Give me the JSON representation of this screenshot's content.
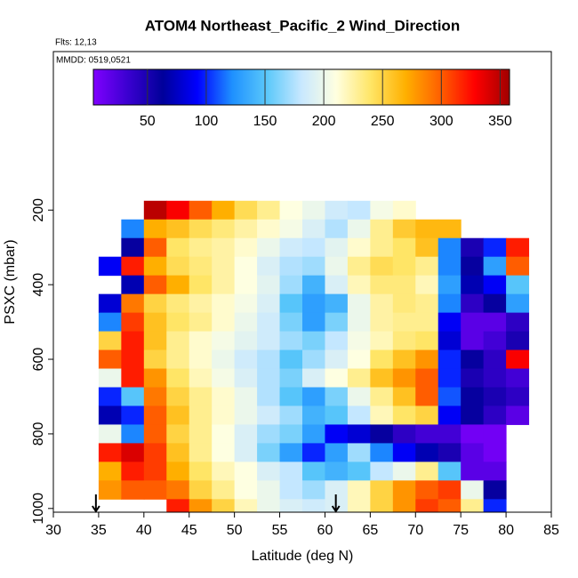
{
  "chart_data": {
    "type": "heatmap",
    "title": "ATOM4 Northeast_Pacific_2 Wind_Direction",
    "annotations": [
      "Flts: 12,13",
      "MMDD: 0519,0521"
    ],
    "x_label": "Latitude (deg N)",
    "y_label": "PSXC (mbar)",
    "xlim": [
      30,
      85
    ],
    "xticks": [
      30,
      35,
      40,
      45,
      50,
      55,
      60,
      65,
      70,
      75,
      80,
      85
    ],
    "ylim": [
      1010,
      -225
    ],
    "yticks": [
      200,
      400,
      600,
      800,
      1000
    ],
    "x": [
      35,
      37.5,
      40,
      42.5,
      45,
      47.5,
      50,
      52.5,
      55,
      57.5,
      60,
      62.5,
      65,
      67.5,
      70,
      72.5,
      75,
      77.5,
      80,
      82.5
    ],
    "y": [
      200,
      250,
      300,
      350,
      400,
      450,
      500,
      550,
      600,
      650,
      700,
      750,
      800,
      850,
      900,
      950,
      1000
    ],
    "z": [
      [
        null,
        null,
        350,
        330,
        300,
        270,
        245,
        230,
        210,
        200,
        185,
        180,
        205,
        215,
        null,
        null,
        null,
        null,
        null
      ],
      [
        null,
        120,
        270,
        260,
        245,
        235,
        225,
        215,
        205,
        190,
        175,
        200,
        230,
        255,
        265,
        265,
        null,
        null,
        null
      ],
      [
        null,
        60,
        300,
        240,
        230,
        225,
        215,
        200,
        185,
        180,
        195,
        215,
        230,
        240,
        260,
        120,
        50,
        100,
        320
      ],
      [
        90,
        320,
        270,
        245,
        235,
        225,
        210,
        190,
        175,
        170,
        200,
        230,
        245,
        240,
        230,
        120,
        60,
        130,
        300
      ],
      [
        null,
        70,
        300,
        270,
        240,
        225,
        210,
        195,
        170,
        140,
        190,
        220,
        235,
        235,
        220,
        130,
        70,
        90,
        150
      ],
      [
        80,
        290,
        250,
        235,
        225,
        215,
        205,
        190,
        150,
        130,
        140,
        200,
        225,
        235,
        230,
        120,
        40,
        60,
        130
      ],
      [
        120,
        310,
        260,
        240,
        230,
        215,
        200,
        185,
        160,
        130,
        160,
        200,
        225,
        230,
        230,
        90,
        20,
        20,
        40
      ],
      [
        250,
        320,
        260,
        230,
        215,
        205,
        195,
        185,
        170,
        160,
        180,
        205,
        220,
        235,
        240,
        80,
        20,
        30,
        50
      ],
      [
        300,
        320,
        250,
        230,
        215,
        200,
        185,
        175,
        150,
        170,
        190,
        210,
        240,
        260,
        280,
        100,
        60,
        40,
        330
      ],
      [
        200,
        320,
        280,
        240,
        220,
        205,
        190,
        175,
        160,
        190,
        210,
        230,
        260,
        280,
        300,
        100,
        50,
        40,
        30
      ],
      [
        100,
        150,
        290,
        250,
        230,
        215,
        200,
        175,
        150,
        130,
        160,
        200,
        230,
        260,
        300,
        110,
        60,
        50,
        40
      ],
      [
        70,
        100,
        300,
        260,
        230,
        215,
        200,
        185,
        170,
        140,
        150,
        180,
        220,
        240,
        250,
        90,
        60,
        40,
        20
      ],
      [
        200,
        120,
        300,
        250,
        230,
        210,
        190,
        170,
        160,
        130,
        90,
        80,
        60,
        40,
        30,
        30,
        10,
        10,
        null
      ],
      [
        320,
        340,
        310,
        260,
        230,
        210,
        190,
        160,
        130,
        100,
        130,
        170,
        120,
        90,
        70,
        50,
        20,
        10,
        null
      ],
      [
        270,
        320,
        310,
        270,
        240,
        220,
        210,
        190,
        180,
        150,
        140,
        150,
        180,
        200,
        230,
        150,
        20,
        20,
        null
      ],
      [
        280,
        300,
        300,
        290,
        250,
        230,
        210,
        200,
        180,
        170,
        190,
        220,
        250,
        280,
        300,
        310,
        200,
        60,
        null
      ],
      [
        null,
        null,
        null,
        320,
        280,
        250,
        220,
        200,
        190,
        185,
        190,
        220,
        250,
        280,
        310,
        300,
        230,
        100,
        null
      ]
    ],
    "clim": [
      4,
      358
    ],
    "colorbar_ticks": [
      50,
      100,
      150,
      200,
      250,
      300,
      350
    ],
    "colorscale": [
      "#8000ff",
      "#3a00d0",
      "#00009a",
      "#0000ff",
      "#1e90ff",
      "#5ac8fa",
      "#c8e8ff",
      "#ffffe0",
      "#ffe566",
      "#ffb000",
      "#ff6000",
      "#ff0000",
      "#a00000"
    ],
    "markers": [
      34.7,
      61.2
    ]
  }
}
